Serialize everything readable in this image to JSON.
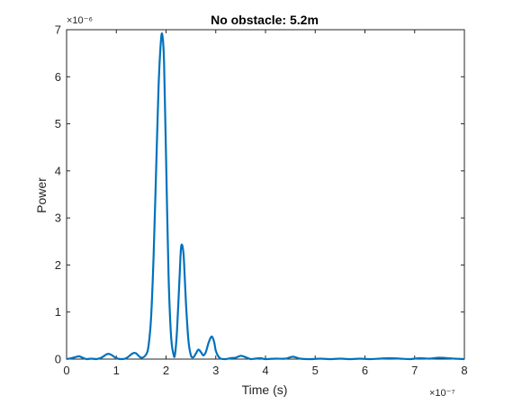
{
  "chart_data": {
    "type": "line",
    "title": "No obstacle: 5.2m",
    "xlabel": "Time (s)",
    "ylabel": "Power",
    "x_exponent_label": "×10⁻⁷",
    "y_exponent_label": "×10⁻⁶",
    "xlim": [
      0,
      8e-07
    ],
    "ylim": [
      0,
      7e-06
    ],
    "x_ticks": [
      0,
      1e-07,
      2e-07,
      3e-07,
      4e-07,
      5e-07,
      6e-07,
      7e-07,
      8e-07
    ],
    "x_tick_labels": [
      "0",
      "1",
      "2",
      "3",
      "4",
      "5",
      "6",
      "7",
      "8"
    ],
    "y_ticks": [
      0,
      1e-06,
      2e-06,
      3e-06,
      4e-06,
      5e-06,
      6e-06,
      7e-06
    ],
    "y_tick_labels": [
      "0",
      "1",
      "2",
      "3",
      "4",
      "5",
      "6",
      "7"
    ],
    "grid": false,
    "line_color": "#0072BD",
    "series": [
      {
        "x": [
          0,
          1e-08,
          2e-08,
          2.5e-08,
          3e-08,
          4e-08,
          5e-08,
          6e-08,
          7e-08,
          8e-08,
          8.5e-08,
          9e-08,
          1e-07,
          1.1e-07,
          1.2e-07,
          1.3e-07,
          1.35e-07,
          1.4e-07,
          1.5e-07,
          1.6e-07,
          1.65e-07,
          1.7e-07,
          1.75e-07,
          1.8e-07,
          1.85e-07,
          1.9e-07,
          1.93e-07,
          1.96e-07,
          2e-07,
          2.05e-07,
          2.1e-07,
          2.15e-07,
          2.18e-07,
          2.22e-07,
          2.27e-07,
          2.3e-07,
          2.33e-07,
          2.36e-07,
          2.4e-07,
          2.45e-07,
          2.5e-07,
          2.55e-07,
          2.6e-07,
          2.65e-07,
          2.7e-07,
          2.75e-07,
          2.8e-07,
          2.85e-07,
          2.9e-07,
          2.93e-07,
          2.97e-07,
          3e-07,
          3.05e-07,
          3.1e-07,
          3.2e-07,
          3.3e-07,
          3.4e-07,
          3.5e-07,
          3.6e-07,
          3.7e-07,
          3.8e-07,
          3.9e-07,
          4e-07,
          4.2e-07,
          4.4e-07,
          4.55e-07,
          4.7e-07,
          4.9e-07,
          5.1e-07,
          5.3e-07,
          5.5e-07,
          5.7e-07,
          5.9e-07,
          6.1e-07,
          6.3e-07,
          6.5e-07,
          6.7e-07,
          6.9e-07,
          7.1e-07,
          7.3e-07,
          7.5e-07,
          7.8e-07,
          8e-07
        ],
        "y": [
          0,
          2e-08,
          5e-08,
          6e-08,
          4e-08,
          0,
          1e-08,
          0,
          3e-08,
          1e-07,
          1.1e-07,
          9e-08,
          2e-08,
          0,
          2e-08,
          1e-07,
          1.3e-07,
          1.2e-07,
          3e-08,
          1e-07,
          3e-07,
          9e-07,
          2.2e-06,
          4e-06,
          5.8e-06,
          6.8e-06,
          6.85e-06,
          6.3e-06,
          4.3e-06,
          1.8e-06,
          5e-07,
          1e-07,
          1e-07,
          6e-07,
          1.7e-06,
          2.35e-06,
          2.4e-06,
          2.1e-06,
          1.2e-06,
          4e-07,
          8e-08,
          4e-08,
          1.2e-07,
          2e-07,
          1.5e-07,
          8e-08,
          1.5e-07,
          3.3e-07,
          4.6e-07,
          4.7e-07,
          3.5e-07,
          1.8e-07,
          6e-08,
          1e-08,
          0,
          2e-08,
          3e-08,
          7e-08,
          4e-08,
          0,
          1e-08,
          2e-08,
          0,
          1e-08,
          1e-08,
          5e-08,
          1e-08,
          0,
          1e-08,
          0,
          1e-08,
          0,
          1e-08,
          0,
          1e-08,
          2e-08,
          1e-08,
          0,
          2e-08,
          1e-08,
          3e-08,
          1e-08,
          0
        ]
      }
    ]
  }
}
